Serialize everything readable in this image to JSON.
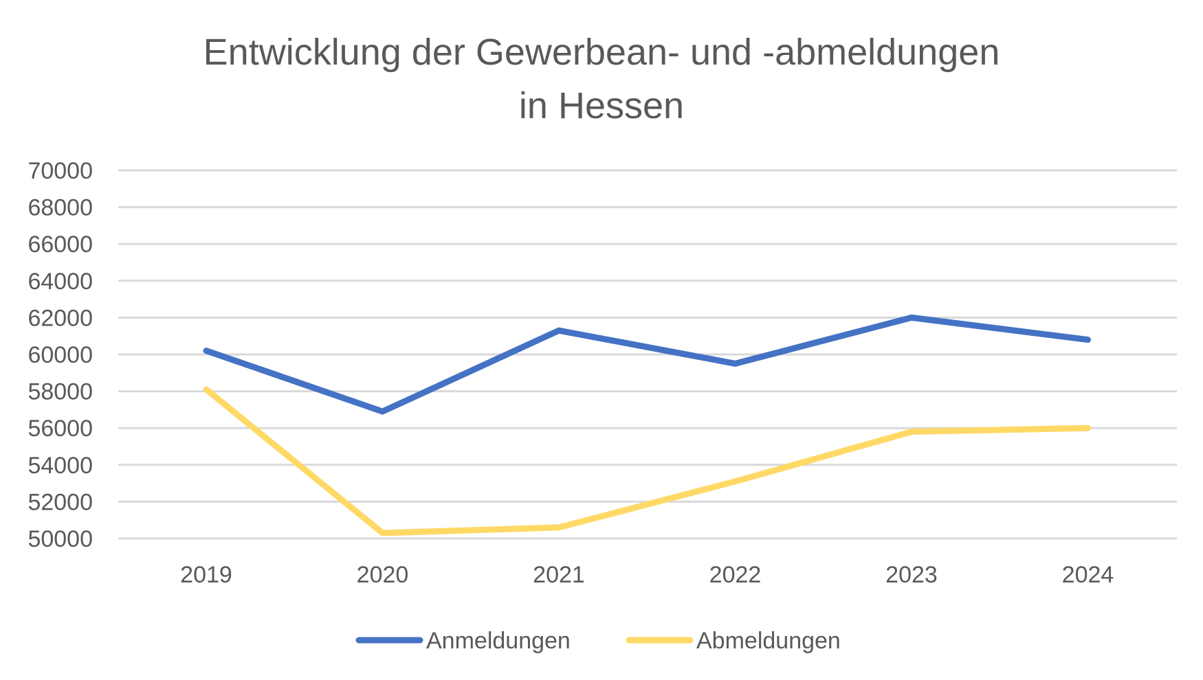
{
  "chart_data": {
    "type": "line",
    "title_lines": [
      "Entwicklung der Gewerbean- und -abmeldungen",
      "in Hessen"
    ],
    "categories": [
      "2019",
      "2020",
      "2021",
      "2022",
      "2023",
      "2024"
    ],
    "yticks": [
      "70000",
      "68000",
      "66000",
      "64000",
      "62000",
      "60000",
      "58000",
      "56000",
      "54000",
      "52000",
      "50000"
    ],
    "ylim": [
      50000,
      70000
    ],
    "grid": true,
    "legend_position": "bottom",
    "series": [
      {
        "name": "Anmeldungen",
        "color": "#4472C4",
        "values": [
          60200,
          56900,
          61300,
          59500,
          62000,
          60800
        ]
      },
      {
        "name": "Abmeldungen",
        "color": "#FFD966",
        "values": [
          58100,
          50300,
          50600,
          53100,
          55800,
          56000
        ]
      }
    ]
  }
}
